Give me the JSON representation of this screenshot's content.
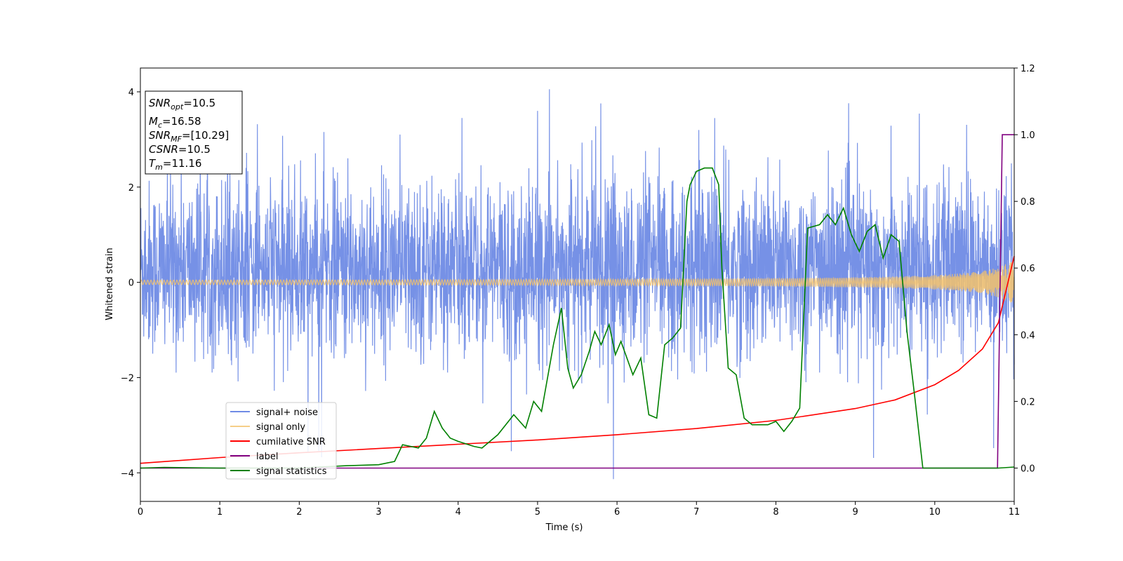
{
  "chart_data": {
    "type": "line",
    "title": "",
    "xlabel": "Time (s)",
    "ylabel": "Whitened strain",
    "xlim": [
      0,
      11
    ],
    "ylim": [
      -4.6,
      4.5
    ],
    "y2lim": [
      -0.1,
      1.2
    ],
    "x_ticks": [
      0,
      1,
      2,
      3,
      4,
      5,
      6,
      7,
      8,
      9,
      10,
      11
    ],
    "y_ticks": [
      -4,
      -2,
      0,
      2,
      4
    ],
    "y2_ticks": [
      "0.0",
      "0.2",
      "0.4",
      "0.6",
      "0.8",
      "1.0",
      "1.2"
    ],
    "grid": false,
    "legend_position": "lower-left",
    "info_box": {
      "lines": [
        {
          "name": "SNR",
          "sub": "opt",
          "value": "=10.5"
        },
        {
          "name": "M",
          "sub": "c",
          "value": "=16.58"
        },
        {
          "name": "SNR",
          "sub": "MF",
          "value": "=[10.29]"
        },
        {
          "name": "CSNR",
          "sub": "",
          "value": "=10.5"
        },
        {
          "name": "T",
          "sub": "m",
          "value": "=11.16"
        }
      ]
    },
    "series": [
      {
        "name": "signal+ noise",
        "color": "#6f8be5",
        "axis": "left",
        "kind": "noise",
        "typical_range": [
          -1.6,
          2.2
        ],
        "extreme_range": [
          -4.15,
          4.1
        ]
      },
      {
        "name": "signal only",
        "color": "#f5c26b",
        "axis": "left",
        "kind": "chirp",
        "amplitude_at_start": 0.02,
        "amplitude_at_end": 0.55
      },
      {
        "name": "cumilative SNR",
        "color": "#ff0000",
        "axis": "left",
        "x": [
          0,
          1,
          2,
          3,
          4,
          5,
          6,
          7,
          8,
          9,
          9.5,
          10,
          10.3,
          10.6,
          10.8,
          11
        ],
        "y": [
          -3.8,
          -3.68,
          -3.58,
          -3.49,
          -3.4,
          -3.31,
          -3.2,
          -3.07,
          -2.9,
          -2.65,
          -2.47,
          -2.15,
          -1.85,
          -1.4,
          -0.85,
          0.55
        ]
      },
      {
        "name": "label",
        "color": "#800080",
        "axis": "right",
        "x": [
          0,
          10.79,
          10.85,
          11
        ],
        "y": [
          0,
          0,
          1,
          1
        ]
      },
      {
        "name": "signal statistics",
        "color": "#008000",
        "axis": "right",
        "x": [
          0,
          0.3,
          1,
          2,
          2.6,
          3,
          3.2,
          3.3,
          3.5,
          3.6,
          3.7,
          3.8,
          3.9,
          4.0,
          4.2,
          4.3,
          4.5,
          4.7,
          4.85,
          4.95,
          5.05,
          5.2,
          5.3,
          5.38,
          5.45,
          5.55,
          5.65,
          5.72,
          5.8,
          5.9,
          5.98,
          6.05,
          6.2,
          6.3,
          6.4,
          6.5,
          6.6,
          6.7,
          6.8,
          6.88,
          6.92,
          7.0,
          7.1,
          7.2,
          7.28,
          7.32,
          7.4,
          7.5,
          7.6,
          7.7,
          7.9,
          8.0,
          8.1,
          8.2,
          8.3,
          8.4,
          8.55,
          8.65,
          8.75,
          8.85,
          8.95,
          9.05,
          9.15,
          9.25,
          9.35,
          9.45,
          9.55,
          9.65,
          9.75,
          9.85,
          9.95,
          10.05,
          10.5,
          10.8,
          11
        ],
        "y": [
          0.0,
          0.002,
          0.0,
          0.0,
          0.007,
          0.01,
          0.02,
          0.07,
          0.06,
          0.09,
          0.17,
          0.12,
          0.09,
          0.08,
          0.065,
          0.06,
          0.1,
          0.16,
          0.12,
          0.2,
          0.17,
          0.37,
          0.48,
          0.3,
          0.24,
          0.28,
          0.35,
          0.41,
          0.37,
          0.43,
          0.34,
          0.38,
          0.28,
          0.33,
          0.16,
          0.15,
          0.37,
          0.39,
          0.42,
          0.8,
          0.85,
          0.89,
          0.9,
          0.9,
          0.85,
          0.6,
          0.3,
          0.28,
          0.15,
          0.13,
          0.13,
          0.14,
          0.11,
          0.14,
          0.18,
          0.72,
          0.73,
          0.76,
          0.73,
          0.78,
          0.7,
          0.65,
          0.71,
          0.73,
          0.63,
          0.7,
          0.68,
          0.41,
          0.21,
          0.0,
          0.0,
          0.0,
          0.0,
          0.0,
          0.003
        ]
      }
    ]
  }
}
